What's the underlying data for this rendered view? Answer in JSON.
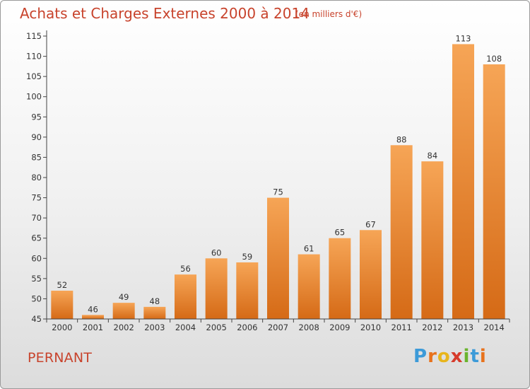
{
  "header": {
    "title": "Achats et Charges Externes 2000 à 2014",
    "subtitle": "(en milliers d'€)"
  },
  "footer": {
    "commune": "PERNANT",
    "logo_letters": [
      "P",
      "r",
      "o",
      "x",
      "i",
      "t",
      "i"
    ],
    "logo_colors": [
      "#3c9ad8",
      "#e8721c",
      "#e8b51c",
      "#d63b2b",
      "#6ab42d",
      "#3c9ad8",
      "#e8721c"
    ]
  },
  "colors": {
    "bar_light": "#f6a556",
    "bar_dark": "#d56a16",
    "text": "#c8432c",
    "axis": "#333333"
  },
  "chart_data": {
    "type": "bar",
    "title": "Achats et Charges Externes 2000 à 2014",
    "subtitle": "(en milliers d'€)",
    "categories": [
      "2000",
      "2001",
      "2002",
      "2003",
      "2004",
      "2005",
      "2006",
      "2007",
      "2008",
      "2009",
      "2010",
      "2011",
      "2012",
      "2013",
      "2014"
    ],
    "values": [
      52,
      46,
      49,
      48,
      56,
      60,
      59,
      75,
      61,
      65,
      67,
      88,
      84,
      113,
      108
    ],
    "ylim": [
      45,
      115
    ],
    "yticks": [
      45,
      50,
      55,
      60,
      65,
      70,
      75,
      80,
      85,
      90,
      95,
      100,
      105,
      110,
      115
    ],
    "xlabel": "",
    "ylabel": "",
    "grid": false,
    "legend": "none"
  }
}
